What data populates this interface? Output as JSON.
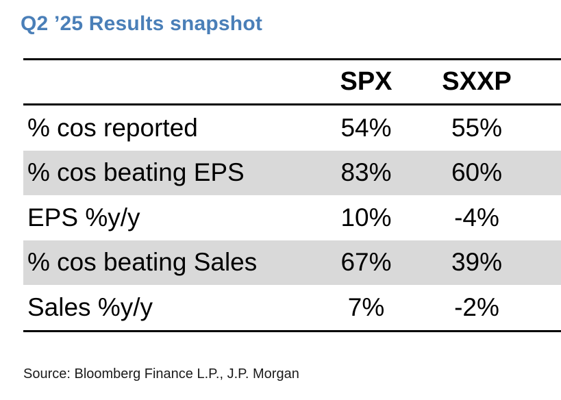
{
  "title": "Q2 ’25 Results snapshot",
  "source": "Source: Bloomberg Finance L.P., J.P. Morgan",
  "colors": {
    "title": "#4a7fb8",
    "row_shade": "#d9d9d9",
    "rule": "#000000"
  },
  "chart_data": {
    "type": "table",
    "title": "Q2 ’25 Results snapshot",
    "columns": [
      "SPX",
      "SXXP"
    ],
    "rows": [
      {
        "label": "% cos reported",
        "values": [
          "54%",
          "55%"
        ],
        "shaded": false
      },
      {
        "label": "% cos beating EPS",
        "values": [
          "83%",
          "60%"
        ],
        "shaded": true
      },
      {
        "label": "EPS %y/y",
        "values": [
          "10%",
          "-4%"
        ],
        "shaded": false
      },
      {
        "label": "% cos beating Sales",
        "values": [
          "67%",
          "39%"
        ],
        "shaded": true
      },
      {
        "label": "Sales %y/y",
        "values": [
          "7%",
          "-2%"
        ],
        "shaded": false
      }
    ],
    "source": "Source: Bloomberg Finance L.P., J.P. Morgan"
  }
}
